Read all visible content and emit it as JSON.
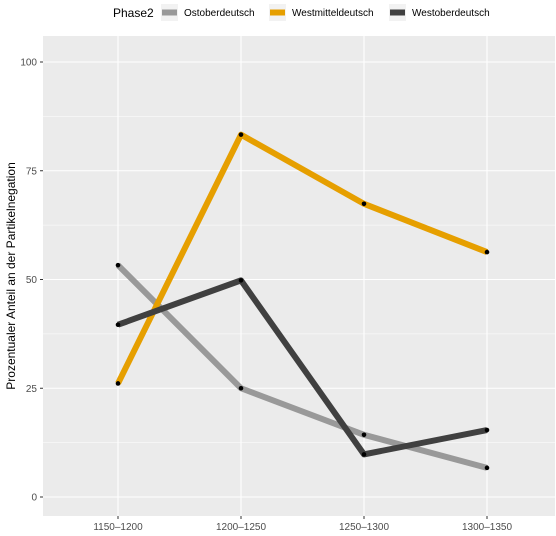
{
  "chart_data": {
    "type": "line",
    "xlabel": "",
    "ylabel": "Prozentualer Anteil an der Partikelnegation",
    "categories": [
      "1150–1200",
      "1200–1250",
      "1250–1300",
      "1300–1350"
    ],
    "ylim": [
      -5,
      105
    ],
    "yticks": [
      0,
      25,
      50,
      75,
      100
    ],
    "grid": true,
    "legend": {
      "title": "Phase2",
      "position": "top"
    },
    "series": [
      {
        "name": "Ostoberdeutsch",
        "color": "#999999",
        "values": [
          53.3,
          25.0,
          14.3,
          6.7
        ]
      },
      {
        "name": "Westmitteldeutsch",
        "color": "#E69F00",
        "values": [
          26.1,
          83.3,
          67.4,
          56.3
        ]
      },
      {
        "name": "Westoberdeutsch",
        "color": "#404040",
        "values": [
          39.6,
          49.8,
          9.8,
          15.4
        ]
      }
    ]
  }
}
